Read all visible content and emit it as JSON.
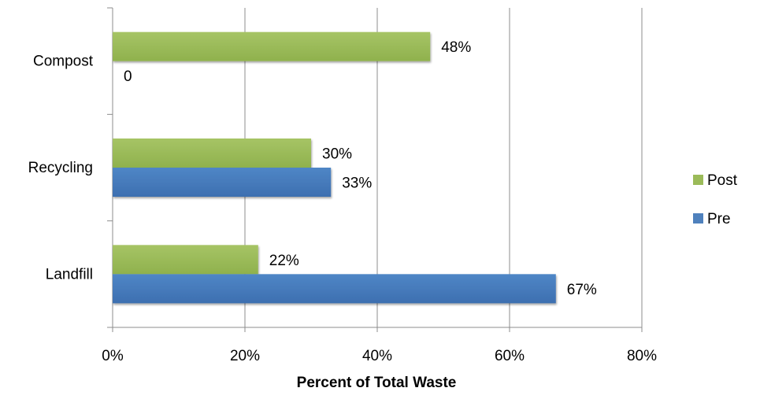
{
  "chart_data": {
    "type": "bar",
    "orientation": "horizontal",
    "categories": [
      "Compost",
      "Recycling",
      "Landfill"
    ],
    "series": [
      {
        "name": "Post",
        "color": "#9BBB59",
        "values": [
          48,
          30,
          22
        ],
        "labels": [
          "48%",
          "30%",
          "22%"
        ]
      },
      {
        "name": "Pre",
        "color": "#4F81BD",
        "values": [
          0,
          33,
          67
        ],
        "labels": [
          "0",
          "33%",
          "67%"
        ]
      }
    ],
    "xlabel": "Percent of Total Waste",
    "ylabel": "",
    "xlim": [
      0,
      80
    ],
    "xticks": [
      0,
      20,
      40,
      60,
      80
    ],
    "xtick_labels": [
      "0%",
      "20%",
      "40%",
      "60%",
      "80%"
    ],
    "grid": "vertical",
    "legend": {
      "position": "right",
      "entries": [
        "Post",
        "Pre"
      ]
    }
  }
}
